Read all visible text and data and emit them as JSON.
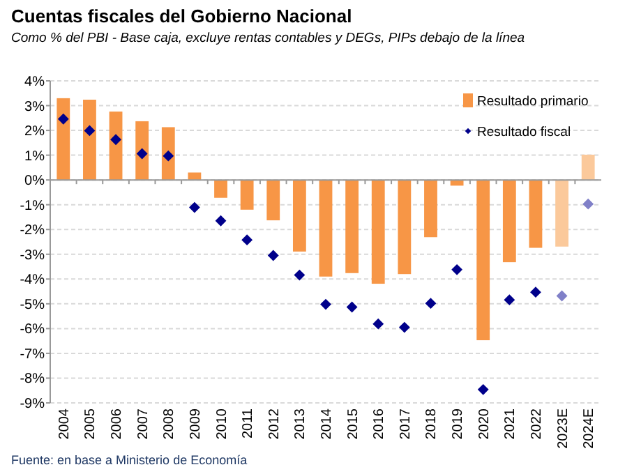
{
  "chart_data": {
    "type": "bar",
    "title": "Cuentas fiscales del Gobierno Nacional",
    "subtitle": "Como % del PBI - Base caja, excluye rentas contables y DEGs, PIPs debajo de la línea",
    "categories": [
      "2004",
      "2005",
      "2006",
      "2007",
      "2008",
      "2009",
      "2010",
      "2011",
      "2012",
      "2013",
      "2014",
      "2015",
      "2016",
      "2017",
      "2018",
      "2019",
      "2020",
      "2021",
      "2022",
      "2023E",
      "2024E"
    ],
    "series": [
      {
        "name": "Resultado primario",
        "color": "#f79646",
        "colors": [
          "#f79646",
          "#f79646",
          "#f79646",
          "#f79646",
          "#f79646",
          "#f79646",
          "#f79646",
          "#f79646",
          "#f79646",
          "#f79646",
          "#f79646",
          "#f79646",
          "#f79646",
          "#f79646",
          "#f79646",
          "#f79646",
          "#f79646",
          "#f79646",
          "#f79646",
          "#fbc99b",
          "#fbc99b"
        ],
        "values": [
          3.3,
          3.24,
          2.76,
          2.37,
          2.13,
          0.3,
          -0.72,
          -1.2,
          -1.63,
          -2.89,
          -3.9,
          -3.76,
          -4.19,
          -3.8,
          -2.31,
          -0.23,
          -6.47,
          -3.32,
          -2.74,
          -2.69,
          1.02
        ]
      },
      {
        "name": "Resultado fiscal",
        "type": "scatter",
        "marker": "diamond",
        "color": "#00008b",
        "colors": [
          "#00008b",
          "#00008b",
          "#00008b",
          "#00008b",
          "#00008b",
          "#00008b",
          "#00008b",
          "#00008b",
          "#00008b",
          "#00008b",
          "#00008b",
          "#00008b",
          "#00008b",
          "#00008b",
          "#00008b",
          "#00008b",
          "#00008b",
          "#00008b",
          "#00008b",
          "#8080c8",
          "#8080c8"
        ],
        "values": [
          2.46,
          1.99,
          1.63,
          1.06,
          0.97,
          -1.11,
          -1.65,
          -2.42,
          -3.05,
          -3.84,
          -5.02,
          -5.13,
          -5.81,
          -5.95,
          -4.98,
          -3.62,
          -8.46,
          -4.84,
          -4.53,
          -4.68,
          -0.97
        ]
      }
    ],
    "ylim": [
      -9,
      4
    ],
    "yticks": [
      {
        "value": -9,
        "label": "-9%"
      },
      {
        "value": -8,
        "label": "-8%"
      },
      {
        "value": -7,
        "label": "-7%"
      },
      {
        "value": -6,
        "label": "-6%"
      },
      {
        "value": -5,
        "label": "-5%"
      },
      {
        "value": -4,
        "label": "-4%"
      },
      {
        "value": -3,
        "label": "-3%"
      },
      {
        "value": -2,
        "label": "-2%"
      },
      {
        "value": -1,
        "label": "-1%"
      },
      {
        "value": 0,
        "label": "0%"
      },
      {
        "value": 1,
        "label": "1%"
      },
      {
        "value": 2,
        "label": "2%"
      },
      {
        "value": 3,
        "label": "3%"
      },
      {
        "value": 4,
        "label": "4%"
      }
    ],
    "grid": "y",
    "legend": "top right",
    "annotations": [
      "Fuente: en base a Ministerio de Economía"
    ]
  }
}
